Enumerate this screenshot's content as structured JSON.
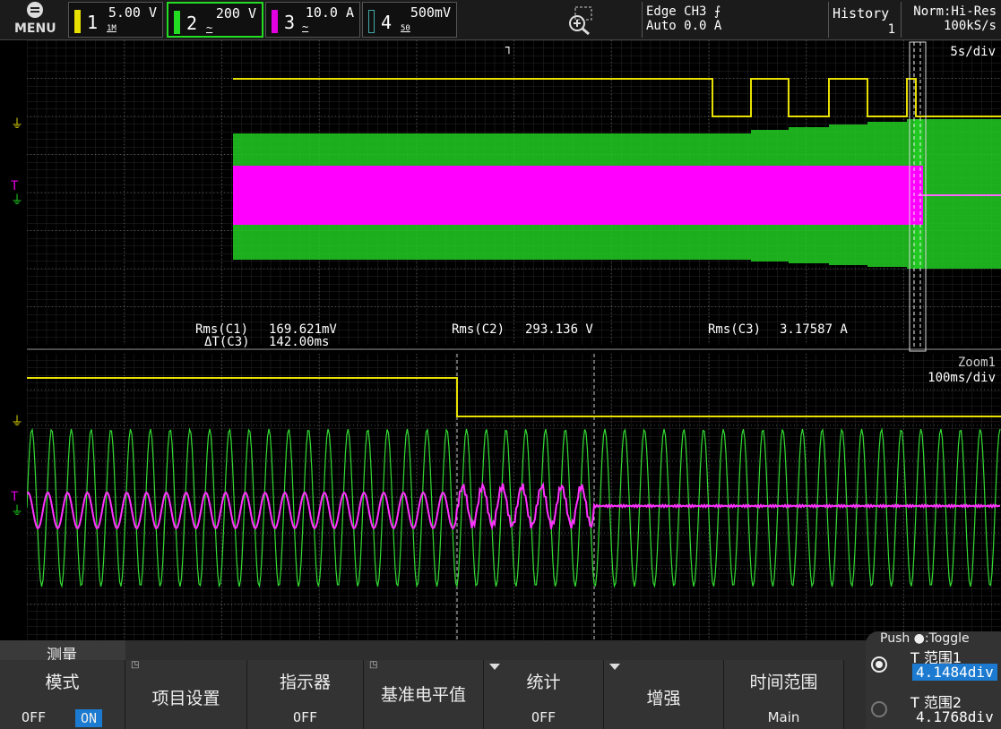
{
  "header": {
    "menu_label": "MENU",
    "channels": [
      {
        "num": "1",
        "scale": "5.00 V",
        "coupling": "1M",
        "color": "#e8e000"
      },
      {
        "num": "2",
        "scale": "200 V",
        "coupling": "~",
        "color": "#22dd22"
      },
      {
        "num": "3",
        "scale": "10.0 A",
        "coupling": "~",
        "color": "#e000e0"
      },
      {
        "num": "4",
        "scale": "500mV",
        "coupling": "50",
        "color": "#44aaaa"
      }
    ],
    "trigger_line1": "Edge CH3 ⨍",
    "trigger_line2": "Auto 0.0 A",
    "history_label": "History",
    "history_value": "1",
    "acq_mode": "Norm:Hi-Res",
    "sample_rate": "100kS/s"
  },
  "main_window": {
    "timebase": "5s/div",
    "meas_rms_c1_label": "Rms(C1)",
    "meas_rms_c1_value": "169.621mV",
    "meas_dt_c3_label": "ΔT(C3)",
    "meas_dt_c3_value": "142.00ms",
    "meas_rms_c2_label": "Rms(C2)",
    "meas_rms_c2_value": "293.136 V",
    "meas_rms_c3_label": "Rms(C3)",
    "meas_rms_c3_value": "3.17587 A"
  },
  "zoom_window": {
    "zoom_label": "Zoom1",
    "zoom_timebase": "100ms/div"
  },
  "softmenu": {
    "title": "测量",
    "mode_label": "模式",
    "mode_off": "OFF",
    "mode_on": "ON",
    "item_settings": "项目设置",
    "indicator_label": "指示器",
    "indicator_value": "OFF",
    "ref_level": "基准电平值",
    "stats_label": "统计",
    "stats_value": "OFF",
    "enhance": "增强",
    "time_range_label": "时间范围",
    "time_range_value": "Main",
    "push_toggle": "Push ●:Toggle",
    "range1_label": "T 范围1",
    "range1_value": "4.1484div",
    "range2_label": "T 范围2",
    "range2_value": "4.1768div"
  }
}
